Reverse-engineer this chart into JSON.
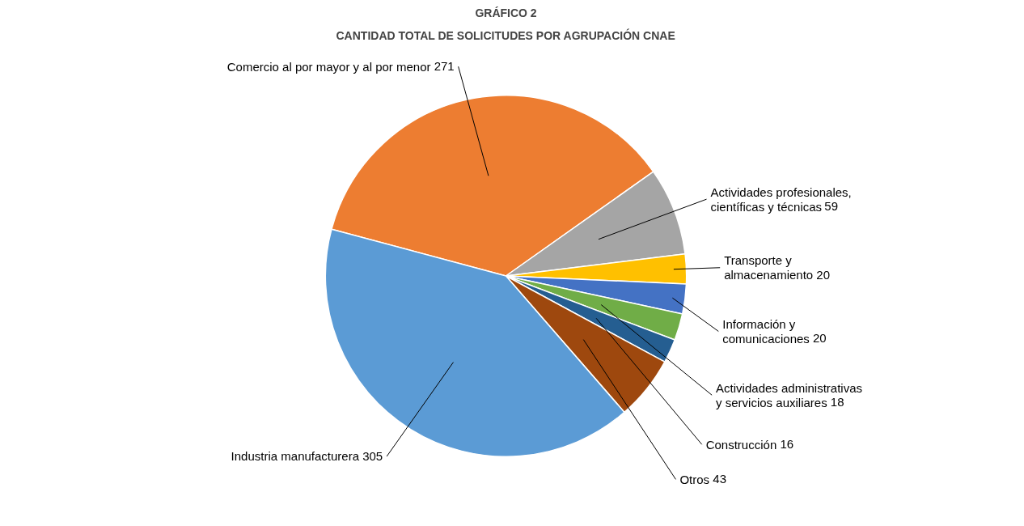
{
  "chart_data": {
    "type": "pie",
    "title": "GRÁFICO 2",
    "subtitle": "CANTIDAD TOTAL DE SOLICITUDES POR AGRUPACIÓN CNAE",
    "categories": [
      "Comercio al por mayor y al por menor",
      "Actividades profesionales,\ncientíficas y técnicas",
      "Transporte y\nalmacenamiento",
      "Información y\ncomunicaciones",
      "Actividades administrativas\ny servicios auxiliares",
      "Construcción",
      "Otros",
      "Industria manufacturera"
    ],
    "values": [
      271,
      59,
      20,
      20,
      18,
      16,
      43,
      305
    ],
    "colors": [
      "#ed7d31",
      "#a5a5a5",
      "#ffc000",
      "#4472c4",
      "#70ad47",
      "#255e91",
      "#9e480e",
      "#5b9bd5"
    ],
    "data_labels": true
  }
}
